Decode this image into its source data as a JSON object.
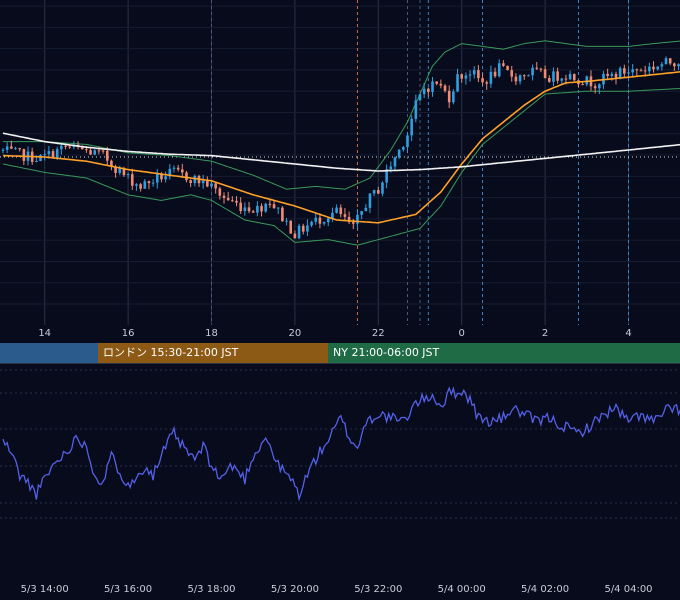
{
  "colors": {
    "background": "#070b1c",
    "grid": "#2a3247",
    "candle_up": "#2f9fe0",
    "candle_down": "#f08a73",
    "ma_short": "#ffa028",
    "ma_long": "#f2f2f2",
    "bollinger": "#3a9a5a",
    "oscillator": "#5560e8",
    "session_tokyo": "#2b5a8c",
    "session_london": "#8c5a14",
    "session_ny": "#1e6b45"
  },
  "hour_labels": [
    "14",
    "16",
    "18",
    "20",
    "22",
    "0",
    "2",
    "4"
  ],
  "date_labels": [
    "5/3 14:00",
    "5/3 16:00",
    "5/3 18:00",
    "5/3 20:00",
    "5/3 22:00",
    "5/4 00:00",
    "5/4 02:00",
    "5/4 04:00"
  ],
  "sessions": [
    {
      "label": "",
      "color": "#2b5a8c"
    },
    {
      "label": "ロンドン 15:30-21:00 JST",
      "color": "#8c5a14"
    },
    {
      "label": "NY 21:00-06:00 JST",
      "color": "#1e6b45"
    }
  ],
  "chart_data": [
    {
      "type": "candlestick",
      "title": "",
      "x_unit": "hours since 5/3 13:00",
      "x_range": [
        13.0,
        29.3
      ],
      "y_range": [
        0,
        100
      ],
      "grid": true,
      "reference_line_y": 57.5,
      "trend_anchors": [
        [
          13.0,
          60
        ],
        [
          13.6,
          58
        ],
        [
          14.0,
          57
        ],
        [
          14.6,
          61
        ],
        [
          15.0,
          60
        ],
        [
          15.5,
          58
        ],
        [
          16.0,
          51
        ],
        [
          16.4,
          47
        ],
        [
          16.8,
          50
        ],
        [
          17.2,
          52
        ],
        [
          17.6,
          50
        ],
        [
          18.0,
          48
        ],
        [
          18.4,
          43
        ],
        [
          18.8,
          40
        ],
        [
          19.2,
          39
        ],
        [
          19.5,
          42
        ],
        [
          19.8,
          36
        ],
        [
          20.1,
          30
        ],
        [
          20.5,
          34
        ],
        [
          20.8,
          36
        ],
        [
          21.1,
          38
        ],
        [
          21.5,
          32
        ],
        [
          21.8,
          41
        ],
        [
          22.1,
          46
        ],
        [
          22.3,
          52
        ],
        [
          22.6,
          60
        ],
        [
          22.8,
          66
        ],
        [
          23.0,
          76
        ],
        [
          23.2,
          82
        ],
        [
          23.5,
          84
        ],
        [
          23.8,
          79
        ],
        [
          24.0,
          86
        ],
        [
          24.3,
          88
        ],
        [
          24.6,
          84
        ],
        [
          25.0,
          89
        ],
        [
          25.4,
          86
        ],
        [
          25.8,
          88
        ],
        [
          26.2,
          86
        ],
        [
          26.6,
          87
        ],
        [
          27.0,
          85
        ],
        [
          27.3,
          84
        ],
        [
          27.6,
          86
        ],
        [
          28.0,
          88
        ],
        [
          28.5,
          89
        ],
        [
          29.0,
          91
        ],
        [
          29.3,
          92
        ]
      ],
      "series": [
        {
          "name": "",
          "kind": "moving_average",
          "anchors": [
            [
              13.0,
              58
            ],
            [
              14.0,
              57.5
            ],
            [
              15.0,
              56
            ],
            [
              16.0,
              53
            ],
            [
              17.0,
              51
            ],
            [
              18.0,
              49
            ],
            [
              19.0,
              44
            ],
            [
              20.0,
              40
            ],
            [
              21.0,
              35
            ],
            [
              22.0,
              34
            ],
            [
              22.9,
              37
            ],
            [
              23.5,
              45
            ],
            [
              24.0,
              55
            ],
            [
              24.5,
              64
            ],
            [
              25.0,
              70
            ],
            [
              25.5,
              76
            ],
            [
              26.0,
              81
            ],
            [
              26.5,
              84
            ],
            [
              27.0,
              84.5
            ],
            [
              28.0,
              86
            ],
            [
              29.3,
              88
            ]
          ]
        },
        {
          "name": "",
          "kind": "moving_average",
          "anchors": [
            [
              13.0,
              66
            ],
            [
              14.0,
              63
            ],
            [
              15.0,
              61
            ],
            [
              16.0,
              59.5
            ],
            [
              17.0,
              58.5
            ],
            [
              18.0,
              58
            ],
            [
              19.0,
              56.5
            ],
            [
              20.0,
              55
            ],
            [
              21.0,
              53.5
            ],
            [
              22.0,
              52.5
            ],
            [
              23.0,
              53
            ],
            [
              24.0,
              54
            ],
            [
              25.0,
              55.5
            ],
            [
              26.0,
              57
            ],
            [
              27.0,
              58.5
            ],
            [
              28.0,
              60
            ],
            [
              29.3,
              62
            ]
          ]
        },
        {
          "name": "",
          "kind": "bollinger_upper",
          "anchors": [
            [
              13.0,
              63
            ],
            [
              14.0,
              63
            ],
            [
              15.0,
              62
            ],
            [
              16.0,
              59
            ],
            [
              17.0,
              58
            ],
            [
              18.0,
              56
            ],
            [
              19.0,
              51
            ],
            [
              19.8,
              46
            ],
            [
              20.5,
              47
            ],
            [
              21.2,
              46
            ],
            [
              21.8,
              50
            ],
            [
              22.3,
              60
            ],
            [
              22.7,
              70
            ],
            [
              23.0,
              80
            ],
            [
              23.3,
              90
            ],
            [
              23.6,
              95
            ],
            [
              24.0,
              98
            ],
            [
              24.5,
              97
            ],
            [
              25.0,
              96
            ],
            [
              25.5,
              98
            ],
            [
              26.0,
              99
            ],
            [
              27.0,
              97
            ],
            [
              28.0,
              97
            ],
            [
              28.6,
              98
            ],
            [
              29.3,
              99
            ]
          ]
        },
        {
          "name": "",
          "kind": "bollinger_lower",
          "anchors": [
            [
              13.0,
              55
            ],
            [
              14.0,
              52
            ],
            [
              15.0,
              50
            ],
            [
              16.0,
              44
            ],
            [
              16.8,
              42
            ],
            [
              17.5,
              44
            ],
            [
              18.0,
              42
            ],
            [
              18.8,
              35
            ],
            [
              19.5,
              33
            ],
            [
              20.0,
              27
            ],
            [
              20.8,
              28
            ],
            [
              21.5,
              26
            ],
            [
              22.0,
              28
            ],
            [
              22.5,
              30
            ],
            [
              23.0,
              32
            ],
            [
              23.5,
              40
            ],
            [
              24.0,
              52
            ],
            [
              24.5,
              62
            ],
            [
              25.0,
              68
            ],
            [
              25.5,
              74
            ],
            [
              26.0,
              80
            ],
            [
              27.0,
              81
            ],
            [
              28.0,
              81
            ],
            [
              29.3,
              82
            ]
          ]
        }
      ],
      "vertical_markers": [
        {
          "x": 21.5,
          "style": "dashed",
          "color": "#c86a4a"
        },
        {
          "x": 22.7,
          "style": "dashed",
          "color": "#4a5a7a"
        },
        {
          "x": 23.0,
          "style": "dashed",
          "color": "#4a5a7a"
        },
        {
          "x": 23.2,
          "style": "dashed",
          "color": "#3a86c8"
        },
        {
          "x": 24.5,
          "style": "dashed",
          "color": "#3a86c8"
        },
        {
          "x": 26.8,
          "style": "dashed",
          "color": "#3a86c8"
        },
        {
          "x": 28.0,
          "style": "dashed",
          "color": "#3a86c8"
        },
        {
          "x": 18.0,
          "style": "dashed",
          "color": "#4a5a7a"
        }
      ]
    },
    {
      "type": "line",
      "title": "",
      "x_unit": "hours since 5/3 13:00",
      "x_range": [
        13.0,
        29.3
      ],
      "y_range": [
        0,
        100
      ],
      "grid": true,
      "series": [
        {
          "name": "",
          "anchors": [
            [
              13.0,
              58
            ],
            [
              13.2,
              52
            ],
            [
              13.4,
              40
            ],
            [
              13.6,
              36
            ],
            [
              13.8,
              30
            ],
            [
              14.0,
              38
            ],
            [
              14.2,
              45
            ],
            [
              14.5,
              52
            ],
            [
              14.8,
              60
            ],
            [
              15.0,
              55
            ],
            [
              15.2,
              40
            ],
            [
              15.4,
              36
            ],
            [
              15.6,
              50
            ],
            [
              15.9,
              38
            ],
            [
              16.1,
              35
            ],
            [
              16.4,
              45
            ],
            [
              16.6,
              40
            ],
            [
              16.9,
              55
            ],
            [
              17.1,
              62
            ],
            [
              17.3,
              55
            ],
            [
              17.6,
              48
            ],
            [
              17.8,
              55
            ],
            [
              18.0,
              45
            ],
            [
              18.2,
              38
            ],
            [
              18.5,
              45
            ],
            [
              18.8,
              38
            ],
            [
              19.0,
              50
            ],
            [
              19.3,
              60
            ],
            [
              19.6,
              45
            ],
            [
              19.9,
              38
            ],
            [
              20.1,
              30
            ],
            [
              20.4,
              45
            ],
            [
              20.6,
              52
            ],
            [
              20.9,
              62
            ],
            [
              21.1,
              70
            ],
            [
              21.3,
              60
            ],
            [
              21.5,
              54
            ],
            [
              21.7,
              68
            ],
            [
              22.0,
              72
            ],
            [
              22.3,
              70
            ],
            [
              22.6,
              68
            ],
            [
              22.9,
              78
            ],
            [
              23.1,
              80
            ],
            [
              23.3,
              82
            ],
            [
              23.5,
              76
            ],
            [
              23.7,
              83
            ],
            [
              24.0,
              84
            ],
            [
              24.2,
              80
            ],
            [
              24.4,
              70
            ],
            [
              24.7,
              68
            ],
            [
              25.0,
              70
            ],
            [
              25.2,
              75
            ],
            [
              25.5,
              72
            ],
            [
              25.8,
              68
            ],
            [
              26.1,
              70
            ],
            [
              26.4,
              66
            ],
            [
              26.8,
              62
            ],
            [
              27.1,
              66
            ],
            [
              27.4,
              72
            ],
            [
              27.7,
              75
            ],
            [
              28.0,
              68
            ],
            [
              28.3,
              72
            ],
            [
              28.6,
              68
            ],
            [
              28.9,
              74
            ],
            [
              29.3,
              75
            ]
          ]
        }
      ]
    }
  ]
}
